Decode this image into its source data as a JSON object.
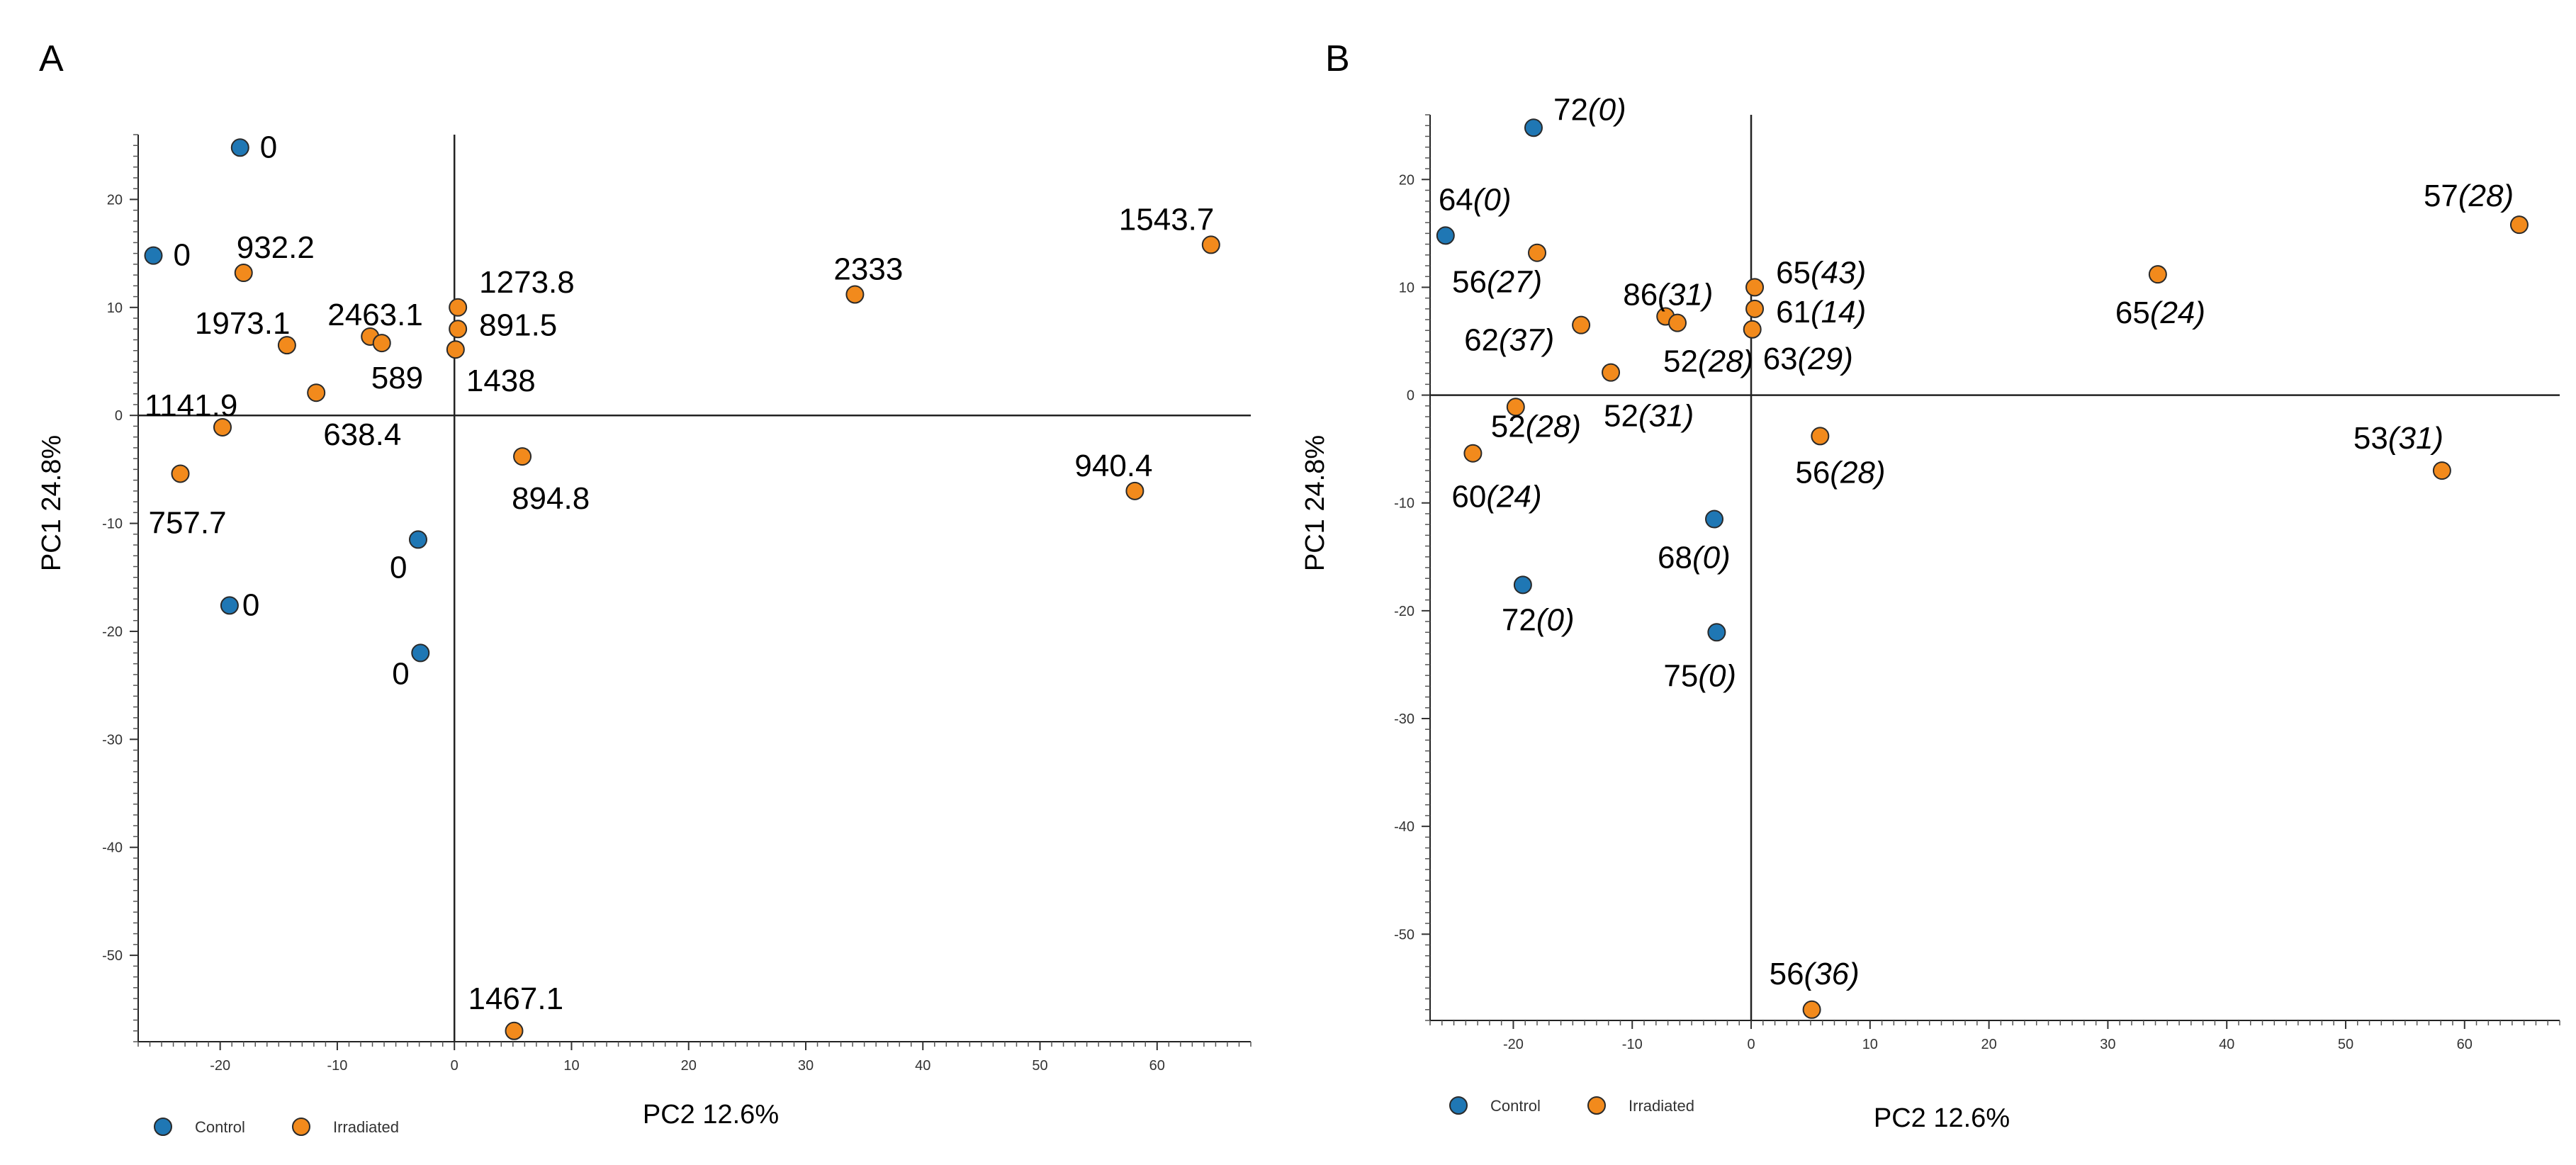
{
  "colors": {
    "control": "#1f77b4",
    "irradiated": "#f28a1c"
  },
  "chart_data": [
    {
      "type": "scatter",
      "panel": "A",
      "xlabel": "PC2 12.6%",
      "ylabel": "PC1 24.8%",
      "xlim": [
        -27,
        68
      ],
      "ylim": [
        -58,
        26
      ],
      "xticks": [
        -20,
        -10,
        0,
        10,
        20,
        30,
        40,
        50,
        60
      ],
      "yticks": [
        20,
        10,
        0,
        -10,
        -20,
        -30,
        -40,
        -50
      ],
      "legend": {
        "position": "bottom-left",
        "entries": [
          "Control",
          "Irradiated"
        ]
      },
      "points": [
        {
          "x": -18.3,
          "y": 24.8,
          "group": "Control",
          "label": "0",
          "italic": ""
        },
        {
          "x": -25.7,
          "y": 14.8,
          "group": "Control",
          "label": "0",
          "italic": ""
        },
        {
          "x": -18.0,
          "y": 13.2,
          "group": "Irradiated",
          "label": "932.2",
          "italic": ""
        },
        {
          "x": -14.3,
          "y": 6.5,
          "group": "Irradiated",
          "label": "1973.1",
          "italic": ""
        },
        {
          "x": -7.2,
          "y": 7.3,
          "group": "Irradiated",
          "label": "2463.1",
          "italic": ""
        },
        {
          "x": -6.2,
          "y": 6.7,
          "group": "Irradiated",
          "label": "589",
          "italic": ""
        },
        {
          "x": -11.8,
          "y": 2.1,
          "group": "Irradiated",
          "label": "638.4",
          "italic": ""
        },
        {
          "x": -19.8,
          "y": -1.1,
          "group": "Irradiated",
          "label": "1141.9",
          "italic": ""
        },
        {
          "x": -23.4,
          "y": -5.4,
          "group": "Irradiated",
          "label": "757.7",
          "italic": ""
        },
        {
          "x": 0.3,
          "y": 10.0,
          "group": "Irradiated",
          "label": "1273.8",
          "italic": ""
        },
        {
          "x": 0.3,
          "y": 8.0,
          "group": "Irradiated",
          "label": "891.5",
          "italic": ""
        },
        {
          "x": 0.1,
          "y": 6.1,
          "group": "Irradiated",
          "label": "1438",
          "italic": ""
        },
        {
          "x": 5.8,
          "y": -3.8,
          "group": "Irradiated",
          "label": "894.8",
          "italic": ""
        },
        {
          "x": 34.2,
          "y": 11.2,
          "group": "Irradiated",
          "label": "2333",
          "italic": ""
        },
        {
          "x": 64.6,
          "y": 15.8,
          "group": "Irradiated",
          "label": "1543.7",
          "italic": ""
        },
        {
          "x": 58.1,
          "y": -7.0,
          "group": "Irradiated",
          "label": "940.4",
          "italic": ""
        },
        {
          "x": -3.1,
          "y": -11.5,
          "group": "Control",
          "label": "0",
          "italic": ""
        },
        {
          "x": -19.2,
          "y": -17.6,
          "group": "Control",
          "label": "0",
          "italic": ""
        },
        {
          "x": -2.9,
          "y": -22.0,
          "group": "Control",
          "label": "0",
          "italic": ""
        },
        {
          "x": 5.1,
          "y": -57.0,
          "group": "Irradiated",
          "label": "1467.1",
          "italic": ""
        }
      ]
    },
    {
      "type": "scatter",
      "panel": "B",
      "xlabel": "PC2 12.6%",
      "ylabel": "PC1 24.8%",
      "xlim": [
        -27,
        68
      ],
      "ylim": [
        -58,
        26
      ],
      "xticks": [
        -20,
        -10,
        0,
        10,
        20,
        30,
        40,
        50,
        60
      ],
      "yticks": [
        20,
        10,
        0,
        -10,
        -20,
        -30,
        -40,
        -50
      ],
      "legend": {
        "position": "bottom-left",
        "entries": [
          "Control",
          "Irradiated"
        ]
      },
      "points": [
        {
          "x": -18.3,
          "y": 24.8,
          "group": "Control",
          "label": "72",
          "italic": "(0)"
        },
        {
          "x": -25.7,
          "y": 14.8,
          "group": "Control",
          "label": "64",
          "italic": "(0)"
        },
        {
          "x": -18.0,
          "y": 13.2,
          "group": "Irradiated",
          "label": "56",
          "italic": "(27)"
        },
        {
          "x": -14.3,
          "y": 6.5,
          "group": "Irradiated",
          "label": "62",
          "italic": "(37)"
        },
        {
          "x": -7.2,
          "y": 7.3,
          "group": "Irradiated",
          "label": "86",
          "italic": "(31)"
        },
        {
          "x": -6.2,
          "y": 6.7,
          "group": "Irradiated",
          "label": "52",
          "italic": "(28)"
        },
        {
          "x": -11.8,
          "y": 2.1,
          "group": "Irradiated",
          "label": "52",
          "italic": "(31)"
        },
        {
          "x": -19.8,
          "y": -1.1,
          "group": "Irradiated",
          "label": "52",
          "italic": "(28)"
        },
        {
          "x": -23.4,
          "y": -5.4,
          "group": "Irradiated",
          "label": "60",
          "italic": "(24)"
        },
        {
          "x": 0.3,
          "y": 10.0,
          "group": "Irradiated",
          "label": "65",
          "italic": "(43)"
        },
        {
          "x": 0.3,
          "y": 8.0,
          "group": "Irradiated",
          "label": "61",
          "italic": "(14)"
        },
        {
          "x": 0.1,
          "y": 6.1,
          "group": "Irradiated",
          "label": "63",
          "italic": "(29)"
        },
        {
          "x": 5.8,
          "y": -3.8,
          "group": "Irradiated",
          "label": "56",
          "italic": "(28)"
        },
        {
          "x": 34.2,
          "y": 11.2,
          "group": "Irradiated",
          "label": "65",
          "italic": "(24)"
        },
        {
          "x": 64.6,
          "y": 15.8,
          "group": "Irradiated",
          "label": "57",
          "italic": "(28)"
        },
        {
          "x": 58.1,
          "y": -7.0,
          "group": "Irradiated",
          "label": "53",
          "italic": "(31)"
        },
        {
          "x": -3.1,
          "y": -11.5,
          "group": "Control",
          "label": "68",
          "italic": "(0)"
        },
        {
          "x": -19.2,
          "y": -17.6,
          "group": "Control",
          "label": "72",
          "italic": "(0)"
        },
        {
          "x": -2.9,
          "y": -22.0,
          "group": "Control",
          "label": "75",
          "italic": "(0)"
        },
        {
          "x": 5.1,
          "y": -57.0,
          "group": "Irradiated",
          "label": "56",
          "italic": "(36)"
        }
      ]
    }
  ]
}
